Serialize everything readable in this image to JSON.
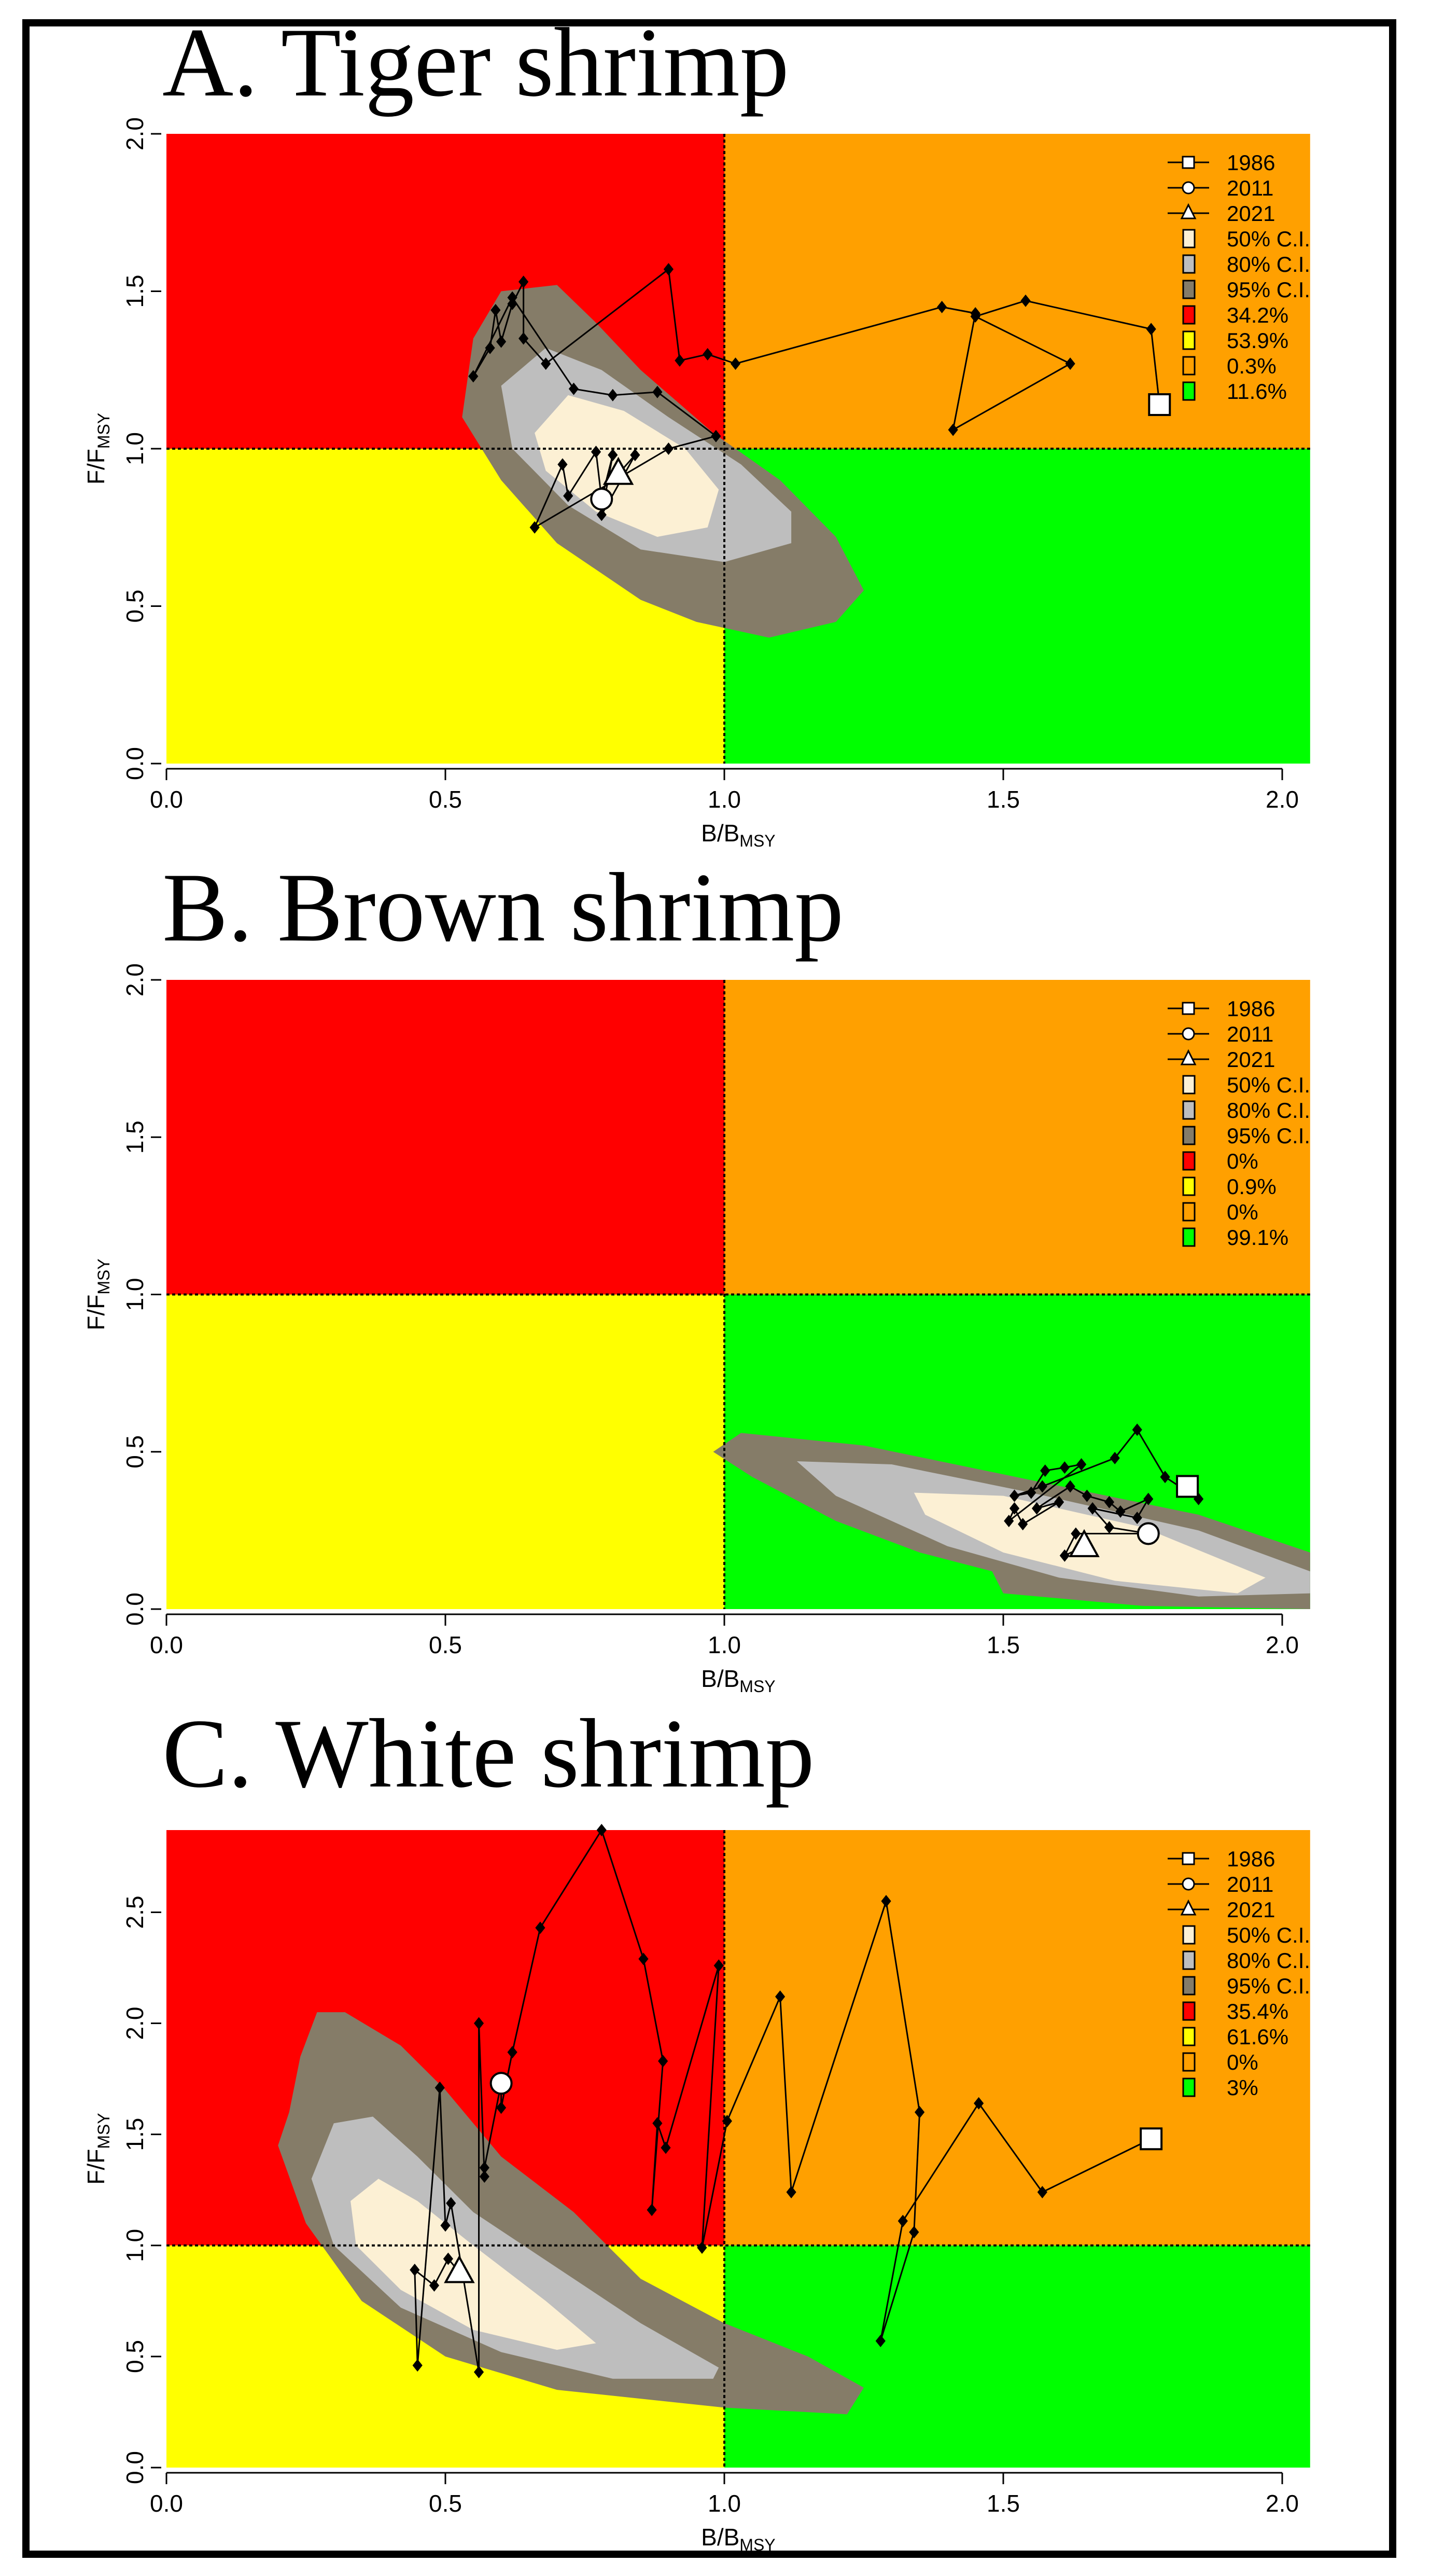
{
  "colors": {
    "red": "#FF0000",
    "yellow": "#FFFF00",
    "orange": "#FFA000",
    "green": "#00FF00",
    "ci50": "#FCF0D4",
    "ci80": "#BEBEBE",
    "ci95": "#857C68"
  },
  "chart_data": [
    {
      "type": "scatter",
      "title": "A. Tiger shrimp",
      "xlabel_main": "B/B",
      "xlabel_sub": "MSY",
      "ylabel_main": "F/F",
      "ylabel_sub": "MSY",
      "xlim": [
        0,
        2.05
      ],
      "ylim": [
        0,
        2.0
      ],
      "xticks": [
        "0.0",
        "0.5",
        "1.0",
        "1.5",
        "2.0"
      ],
      "yticks": [
        "0.0",
        "0.5",
        "1.0",
        "1.5",
        "2.0"
      ],
      "legend": {
        "placement": "top-right",
        "markers": [
          "1986",
          "2011",
          "2021"
        ],
        "ci": [
          "50% C.I.",
          "80% C.I.",
          "95% C.I."
        ],
        "quadrants": [
          "34.2%",
          "53.9%",
          "0.3%",
          "11.6%"
        ]
      },
      "trajectory": [
        [
          1.78,
          1.14
        ],
        [
          1.765,
          1.38
        ],
        [
          1.54,
          1.47
        ],
        [
          1.45,
          1.42
        ],
        [
          1.62,
          1.27
        ],
        [
          1.41,
          1.06
        ],
        [
          1.45,
          1.43
        ],
        [
          1.39,
          1.45
        ],
        [
          1.02,
          1.27
        ],
        [
          0.97,
          1.3
        ],
        [
          0.92,
          1.28
        ],
        [
          0.9,
          1.57
        ],
        [
          0.68,
          1.27
        ],
        [
          0.64,
          1.35
        ],
        [
          0.64,
          1.53
        ],
        [
          0.62,
          1.46
        ],
        [
          0.6,
          1.34
        ],
        [
          0.59,
          1.44
        ],
        [
          0.58,
          1.32
        ],
        [
          0.55,
          1.23
        ],
        [
          0.62,
          1.48
        ],
        [
          0.73,
          1.19
        ],
        [
          0.8,
          1.17
        ],
        [
          0.88,
          1.18
        ],
        [
          0.985,
          1.04
        ],
        [
          0.9,
          1.0
        ],
        [
          0.66,
          0.75
        ],
        [
          0.71,
          0.95
        ],
        [
          0.72,
          0.85
        ],
        [
          0.77,
          0.99
        ],
        [
          0.78,
          0.84
        ],
        [
          0.8,
          0.98
        ],
        [
          0.78,
          0.79
        ],
        [
          0.84,
          0.98
        ],
        [
          0.81,
          0.92
        ]
      ],
      "marker_years": {
        "1986": 0,
        "2011": 30,
        "2021": 34
      }
    },
    {
      "type": "scatter",
      "title": "B. Brown shrimp",
      "xlabel_main": "B/B",
      "xlabel_sub": "MSY",
      "ylabel_main": "F/F",
      "ylabel_sub": "MSY",
      "xlim": [
        0,
        2.05
      ],
      "ylim": [
        0,
        2.0
      ],
      "xticks": [
        "0.0",
        "0.5",
        "1.0",
        "1.5",
        "2.0"
      ],
      "yticks": [
        "0.0",
        "0.5",
        "1.0",
        "1.5",
        "2.0"
      ],
      "legend": {
        "placement": "top-right",
        "markers": [
          "1986",
          "2011",
          "2021"
        ],
        "ci": [
          "50% C.I.",
          "80% C.I.",
          "95% C.I."
        ],
        "quadrants": [
          "0%",
          "0.9%",
          "0%",
          "99.1%"
        ]
      },
      "trajectory": [
        [
          1.83,
          0.39
        ],
        [
          1.85,
          0.35
        ],
        [
          1.79,
          0.42
        ],
        [
          1.74,
          0.57
        ],
        [
          1.7,
          0.48
        ],
        [
          1.57,
          0.39
        ],
        [
          1.52,
          0.36
        ],
        [
          1.55,
          0.37
        ],
        [
          1.575,
          0.44
        ],
        [
          1.61,
          0.45
        ],
        [
          1.64,
          0.46
        ],
        [
          1.51,
          0.28
        ],
        [
          1.52,
          0.32
        ],
        [
          1.535,
          0.27
        ],
        [
          1.6,
          0.34
        ],
        [
          1.56,
          0.32
        ],
        [
          1.62,
          0.39
        ],
        [
          1.65,
          0.36
        ],
        [
          1.69,
          0.34
        ],
        [
          1.71,
          0.31
        ],
        [
          1.76,
          0.35
        ],
        [
          1.74,
          0.29
        ],
        [
          1.66,
          0.32
        ],
        [
          1.69,
          0.26
        ],
        [
          1.76,
          0.24
        ],
        [
          1.63,
          0.24
        ],
        [
          1.61,
          0.17
        ],
        [
          1.645,
          0.2
        ]
      ],
      "marker_years": {
        "1986": 0,
        "2011": 24,
        "2021": 27
      }
    },
    {
      "type": "scatter",
      "title": "C. White shrimp",
      "xlabel_main": "B/B",
      "xlabel_sub": "MSY",
      "ylabel_main": "F/F",
      "ylabel_sub": "MSY",
      "xlim": [
        0,
        2.05
      ],
      "ylim": [
        0,
        2.87
      ],
      "xticks": [
        "0.0",
        "0.5",
        "1.0",
        "1.5",
        "2.0"
      ],
      "yticks": [
        "0.0",
        "0.5",
        "1.0",
        "1.5",
        "2.0",
        "2.5"
      ],
      "legend": {
        "placement": "top-right",
        "markers": [
          "1986",
          "2011",
          "2021"
        ],
        "ci": [
          "50% C.I.",
          "80% C.I.",
          "95% C.I."
        ],
        "quadrants": [
          "35.4%",
          "61.6%",
          "0%",
          "3%"
        ]
      },
      "trajectory": [
        [
          1.765,
          1.48
        ],
        [
          1.57,
          1.24
        ],
        [
          1.456,
          1.64
        ],
        [
          1.32,
          1.11
        ],
        [
          1.28,
          0.57
        ],
        [
          1.34,
          1.06
        ],
        [
          1.35,
          1.6
        ],
        [
          1.29,
          2.55
        ],
        [
          1.12,
          1.24
        ],
        [
          1.1,
          2.12
        ],
        [
          1.005,
          1.56
        ],
        [
          0.96,
          0.99
        ],
        [
          0.99,
          2.26
        ],
        [
          0.895,
          1.44
        ],
        [
          0.88,
          1.55
        ],
        [
          0.87,
          1.16
        ],
        [
          0.89,
          1.83
        ],
        [
          0.855,
          2.29
        ],
        [
          0.78,
          2.87
        ],
        [
          0.67,
          2.43
        ],
        [
          0.62,
          1.87
        ],
        [
          0.6,
          1.62
        ],
        [
          0.6,
          1.73
        ],
        [
          0.57,
          1.35
        ],
        [
          0.57,
          1.31
        ],
        [
          0.56,
          2.0
        ],
        [
          0.56,
          0.43
        ],
        [
          0.51,
          1.19
        ],
        [
          0.5,
          1.09
        ],
        [
          0.49,
          1.71
        ],
        [
          0.45,
          0.46
        ],
        [
          0.445,
          0.89
        ],
        [
          0.48,
          0.82
        ],
        [
          0.505,
          0.94
        ],
        [
          0.525,
          0.88
        ]
      ],
      "marker_years": {
        "1986": 0,
        "2011": 22,
        "2021": 34
      }
    }
  ]
}
